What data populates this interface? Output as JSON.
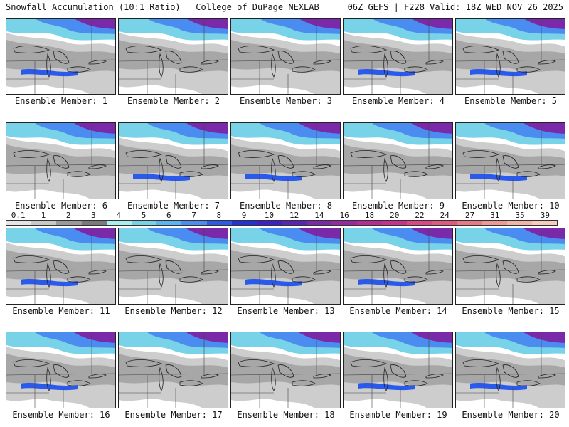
{
  "header": {
    "left_title": "Snowfall Accumulation (10:1 Ratio) | College of DuPage NEXLAB",
    "right_title": "06Z GEFS | F228 Valid: 18Z WED NOV 26 2025"
  },
  "legend": {
    "labels": [
      "0.1",
      "1",
      "2",
      "3",
      "4",
      "5",
      "6",
      "7",
      "8",
      "9",
      "10",
      "12",
      "14",
      "16",
      "18",
      "20",
      "22",
      "24",
      "27",
      "31",
      "35",
      "39"
    ],
    "colors": [
      "#e6e6e6",
      "#c8c8c8",
      "#9a9a9a",
      "#7a7a7a",
      "#a8f0f0",
      "#78d2e8",
      "#5ab4f0",
      "#4a8cf0",
      "#2a5aec",
      "#2234d8",
      "#3c20c8",
      "#5a24b4",
      "#7a2aa8",
      "#962aa0",
      "#b42c96",
      "#c8328c",
      "#dc4684",
      "#e05a80",
      "#e67a88",
      "#eb9a98",
      "#f0b4a8",
      "#f6ccbe"
    ]
  },
  "panels": [
    {
      "member": 1,
      "caption": "Ensemble Member: 1",
      "coverage": [
        0.35,
        0.2
      ],
      "blue_band": true
    },
    {
      "member": 2,
      "caption": "Ensemble Member: 2",
      "coverage": [
        0.3,
        0.25
      ],
      "blue_band": false
    },
    {
      "member": 3,
      "caption": "Ensemble Member: 3",
      "coverage": [
        0.45,
        0.15
      ],
      "blue_band": false
    },
    {
      "member": 4,
      "caption": "Ensemble Member: 4",
      "coverage": [
        0.35,
        0.1
      ],
      "blue_band": true
    },
    {
      "member": 5,
      "caption": "Ensemble Member: 5",
      "coverage": [
        0.3,
        0.15
      ],
      "blue_band": true
    },
    {
      "member": 6,
      "caption": "Ensemble Member: 6",
      "coverage": [
        0.35,
        0.2
      ],
      "blue_band": false
    },
    {
      "member": 7,
      "caption": "Ensemble Member: 7",
      "coverage": [
        0.35,
        0.2
      ],
      "blue_band": true
    },
    {
      "member": 8,
      "caption": "Ensemble Member: 8",
      "coverage": [
        0.45,
        0.2
      ],
      "blue_band": true
    },
    {
      "member": 9,
      "caption": "Ensemble Member: 9",
      "coverage": [
        0.3,
        0.15
      ],
      "blue_band": false
    },
    {
      "member": 10,
      "caption": "Ensemble Member: 10",
      "coverage": [
        0.3,
        0.15
      ],
      "blue_band": true
    },
    {
      "member": 11,
      "caption": "Ensemble Member: 11",
      "coverage": [
        0.35,
        0.2
      ],
      "blue_band": true
    },
    {
      "member": 12,
      "caption": "Ensemble Member: 12",
      "coverage": [
        0.25,
        0.15
      ],
      "blue_band": false
    },
    {
      "member": 13,
      "caption": "Ensemble Member: 13",
      "coverage": [
        0.45,
        0.25
      ],
      "blue_band": true
    },
    {
      "member": 14,
      "caption": "Ensemble Member: 14",
      "coverage": [
        0.5,
        0.2
      ],
      "blue_band": true
    },
    {
      "member": 15,
      "caption": "Ensemble Member: 15",
      "coverage": [
        0.2,
        0.15
      ],
      "blue_band": false
    },
    {
      "member": 16,
      "caption": "Ensemble Member: 16",
      "coverage": [
        0.4,
        0.25
      ],
      "blue_band": true
    },
    {
      "member": 17,
      "caption": "Ensemble Member: 17",
      "coverage": [
        0.4,
        0.2
      ],
      "blue_band": false
    },
    {
      "member": 18,
      "caption": "Ensemble Member: 18",
      "coverage": [
        0.4,
        0.2
      ],
      "blue_band": false
    },
    {
      "member": 19,
      "caption": "Ensemble Member: 19",
      "coverage": [
        0.35,
        0.2
      ],
      "blue_band": true
    },
    {
      "member": 20,
      "caption": "Ensemble Member: 20",
      "coverage": [
        0.35,
        0.2
      ],
      "blue_band": true
    }
  ]
}
